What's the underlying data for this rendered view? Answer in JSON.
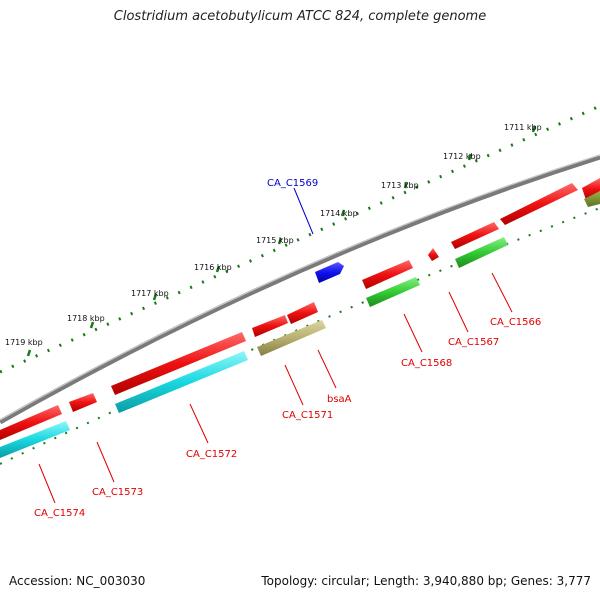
{
  "title": "Clostridium acetobutylicum ATCC 824, complete genome",
  "footer": {
    "accession": "Accession: NC_003030",
    "summary": "Topology: circular; Length: 3,940,880 bp; Genes: 3,777"
  },
  "ticks": [
    "1711 kbp",
    "1712 kbp",
    "1713 kbp",
    "1714 kbp",
    "1715 kbp",
    "1716 kbp",
    "1717 kbp",
    "1718 kbp",
    "1719 kbp"
  ],
  "genes": [
    {
      "label": "CA_C1569",
      "color": "#0000cc"
    },
    {
      "label": "CA_C1566",
      "color": "#e00000"
    },
    {
      "label": "CA_C1567",
      "color": "#e00000"
    },
    {
      "label": "CA_C1568",
      "color": "#e00000"
    },
    {
      "label": "bsaA",
      "color": "#e00000"
    },
    {
      "label": "CA_C1571",
      "color": "#e00000"
    },
    {
      "label": "CA_C1572",
      "color": "#e00000"
    },
    {
      "label": "CA_C1573",
      "color": "#e00000"
    },
    {
      "label": "CA_C1574",
      "color": "#e00000"
    }
  ],
  "colors": {
    "backbone": "#808080",
    "tick": "#1a7a1a",
    "cds_red": "#ee1111",
    "cds_cyan": "#19d8e0",
    "cds_green": "#33cc33",
    "cds_olive": "#b7b070",
    "cds_blue": "#1111ee"
  }
}
